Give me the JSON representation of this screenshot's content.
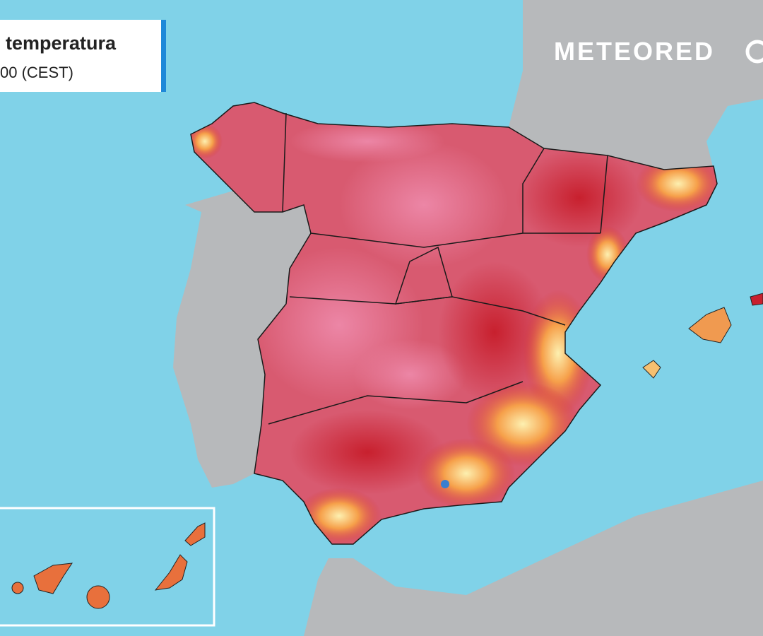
{
  "legend": {
    "title": "temperatura",
    "subtitle": "00 (CEST)"
  },
  "brand": "METEORED"
}
